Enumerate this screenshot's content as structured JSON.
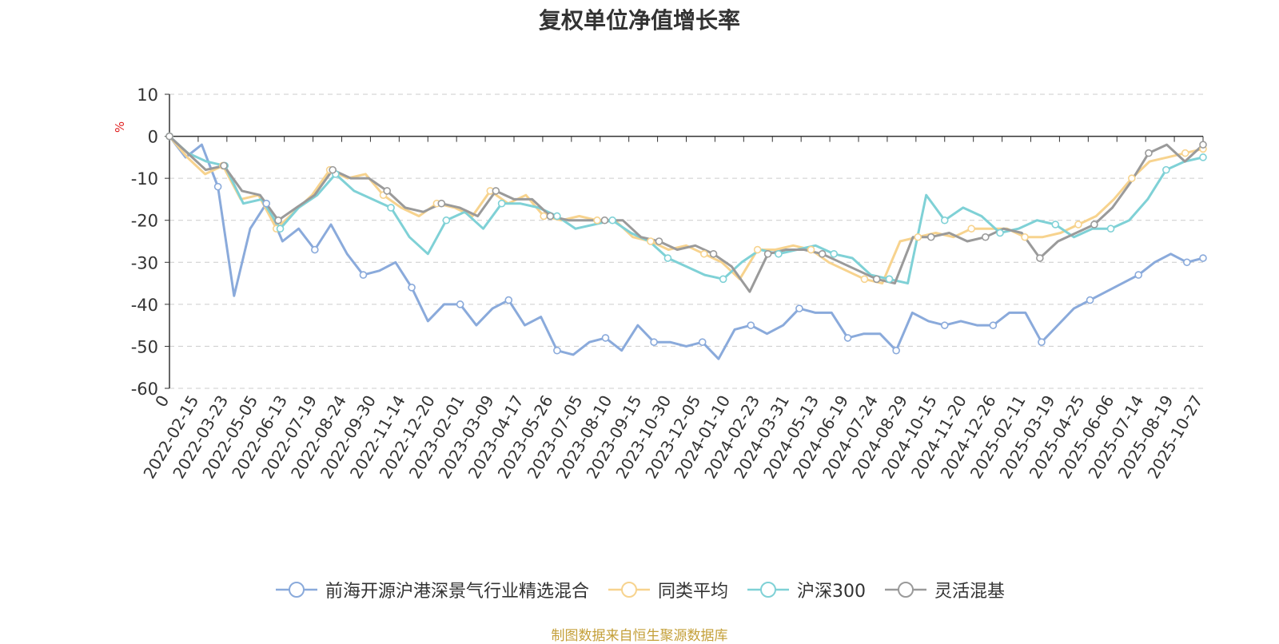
{
  "chart_data": {
    "type": "line",
    "title": "复权单位净值增长率",
    "ylabel": "%",
    "ylim": [
      -60,
      10
    ],
    "yticks": [
      10,
      0,
      -10,
      -20,
      -30,
      -40,
      -50,
      -60
    ],
    "x_tick_labels": [
      "0",
      "2022-02-15",
      "2022-03-23",
      "2022-05-05",
      "2022-06-13",
      "2022-07-19",
      "2022-08-24",
      "2022-09-30",
      "2022-11-14",
      "2022-12-20",
      "2023-02-01",
      "2023-03-09",
      "2023-04-17",
      "2023-05-26",
      "2023-07-05",
      "2023-08-10",
      "2023-09-15",
      "2023-10-30",
      "2023-12-05",
      "2024-01-10",
      "2024-02-23",
      "2024-03-31",
      "2024-05-13",
      "2024-06-19",
      "2024-07-24",
      "2024-08-29",
      "2024-10-15",
      "2024-11-20",
      "2024-12-26",
      "2025-02-11",
      "2025-03-19",
      "2025-04-25",
      "2025-06-06",
      "2025-07-14",
      "2025-08-19",
      "2025-10-27"
    ],
    "grid": "dashed-horizontal",
    "legend": "bottom-center",
    "series": [
      {
        "name": "前海开源沪港深景气行业精选混合",
        "color": "#8aaadb",
        "values": [
          0,
          -5,
          -2,
          -12,
          -38,
          -22,
          -16,
          -25,
          -22,
          -27,
          -21,
          -28,
          -33,
          -32,
          -30,
          -36,
          -44,
          -40,
          -40,
          -45,
          -41,
          -39,
          -45,
          -43,
          -51,
          -52,
          -49,
          -48,
          -51,
          -45,
          -49,
          -49,
          -50,
          -49,
          -53,
          -46,
          -45,
          -47,
          -45,
          -41,
          -42,
          -42,
          -48,
          -47,
          -47,
          -51,
          -42,
          -44,
          -45,
          -44,
          -45,
          -45,
          -42,
          -42,
          -49,
          -45,
          -41,
          -39,
          -37,
          -35,
          -33,
          -30,
          -28,
          -30,
          -29
        ]
      },
      {
        "name": "同类平均",
        "color": "#f7d38e",
        "values": [
          0,
          -5,
          -9,
          -7,
          -15,
          -14,
          -22,
          -18,
          -14,
          -8,
          -10,
          -9,
          -14,
          -17,
          -19,
          -16,
          -17,
          -19,
          -13,
          -16,
          -14,
          -19,
          -20,
          -19,
          -20,
          -20,
          -24,
          -25,
          -27,
          -26,
          -28,
          -30,
          -34,
          -27,
          -27,
          -26,
          -27,
          -30,
          -32,
          -34,
          -35,
          -25,
          -24,
          -23,
          -24,
          -22,
          -22,
          -22,
          -24,
          -24,
          -23,
          -21,
          -19,
          -15,
          -10,
          -6,
          -5,
          -4,
          -3
        ]
      },
      {
        "name": "沪深300",
        "color": "#7fd1d6",
        "values": [
          0,
          -4,
          -6,
          -7,
          -16,
          -15,
          -22,
          -17,
          -14,
          -9,
          -13,
          -15,
          -17,
          -24,
          -28,
          -20,
          -18,
          -22,
          -16,
          -16,
          -17,
          -19,
          -22,
          -21,
          -20,
          -23,
          -25,
          -29,
          -31,
          -33,
          -34,
          -30,
          -27,
          -28,
          -27,
          -26,
          -28,
          -29,
          -33,
          -34,
          -35,
          -14,
          -20,
          -17,
          -19,
          -23,
          -22,
          -20,
          -21,
          -24,
          -22,
          -22,
          -20,
          -15,
          -8,
          -6,
          -5
        ]
      },
      {
        "name": "灵活混基",
        "color": "#9a9a9a",
        "values": [
          0,
          -4,
          -8,
          -7,
          -13,
          -14,
          -20,
          -17,
          -14,
          -8,
          -10,
          -10,
          -13,
          -17,
          -18,
          -16,
          -17,
          -19,
          -13,
          -15,
          -15,
          -19,
          -20,
          -20,
          -20,
          -20,
          -24,
          -25,
          -27,
          -26,
          -28,
          -31,
          -37,
          -28,
          -27,
          -27,
          -28,
          -30,
          -32,
          -34,
          -35,
          -24,
          -24,
          -23,
          -25,
          -24,
          -22,
          -23,
          -29,
          -25,
          -23,
          -21,
          -17,
          -11,
          -4,
          -2,
          -6,
          -2
        ]
      }
    ]
  },
  "source_note": "制图数据来自恒生聚源数据库"
}
